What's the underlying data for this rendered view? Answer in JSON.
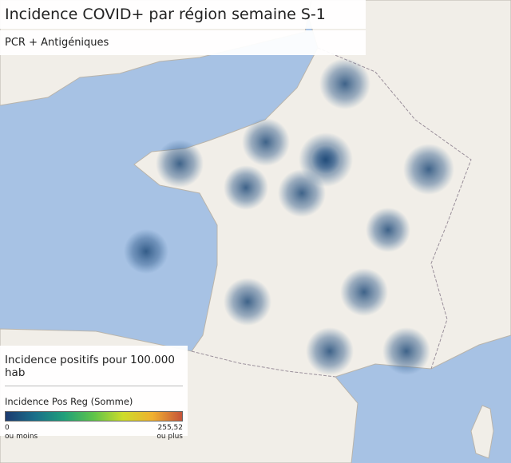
{
  "header": {
    "title": "Incidence COVID+ par région semaine S-1",
    "subtitle": "PCR + Antigéniques"
  },
  "legend": {
    "title": "Incidence positifs pour 100.000 hab",
    "field": "Incidence Pos Reg (Somme)",
    "min": "0",
    "max": "255,52",
    "min_note": "ou moins",
    "max_note": "ou plus"
  }
}
